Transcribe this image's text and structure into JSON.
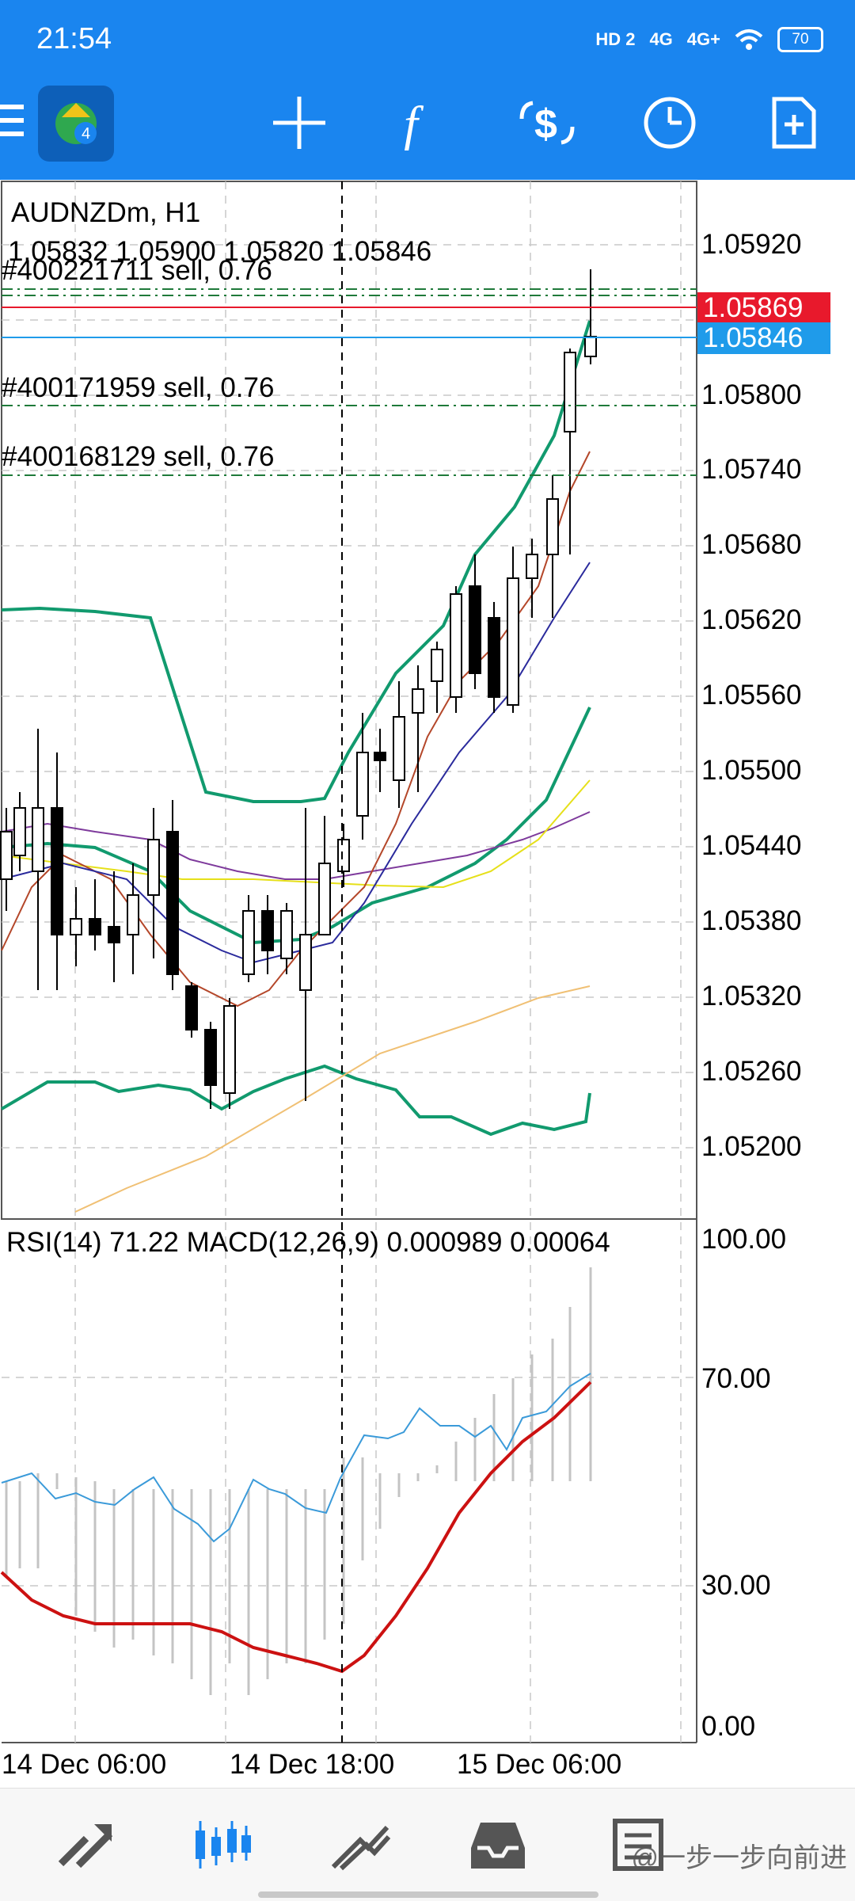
{
  "status_bar": {
    "time": "21:54",
    "network1": "HD 2",
    "network2": "4G",
    "network3": "4G+",
    "battery": "70"
  },
  "toolbar": {
    "icons": [
      "menu-icon",
      "app-logo-icon",
      "crosshair-icon",
      "indicators-icon",
      "trade-icon",
      "timeframe-icon",
      "add-template-icon"
    ]
  },
  "chart": {
    "symbol_title": "AUDNZDm, H1",
    "ohlc": "1.05832 1.05900 1.05820 1.05846",
    "price_axis": [
      "1.05920",
      "1.05800",
      "1.05740",
      "1.05680",
      "1.05620",
      "1.05560",
      "1.05500",
      "1.05440",
      "1.05380",
      "1.05320",
      "1.05260",
      "1.05200"
    ],
    "ask_tag": "1.05869",
    "bid_tag": "1.05846",
    "orders": [
      {
        "label": "#400221711 sell, 0.76"
      },
      {
        "label": "#400171959 sell, 0.76"
      },
      {
        "label": "#400168129 sell, 0.76"
      }
    ],
    "sub_window_title": "RSI(14) 71.22 MACD(12,26,9) 0.000989 0.00064",
    "sub_axis": [
      "100.00",
      "70.00",
      "30.00",
      "0.00"
    ],
    "time_axis": [
      "14 Dec 06:00",
      "14 Dec 18:00",
      "15 Dec 06:00"
    ],
    "colors": {
      "bollinger": "#119a6e",
      "rsi": "#3a9ad9",
      "macd_signal": "#cc1111",
      "ask_tag": "#e8192c",
      "bid_tag": "#1f9bea",
      "bullish_candle": "#ffffff",
      "bearish_candle": "#000000"
    }
  },
  "bottom_nav": {
    "items": [
      "quotes-icon",
      "chart-icon",
      "trade-icon",
      "history-icon",
      "messages-icon"
    ],
    "watermark": "@一步一步向前进"
  }
}
